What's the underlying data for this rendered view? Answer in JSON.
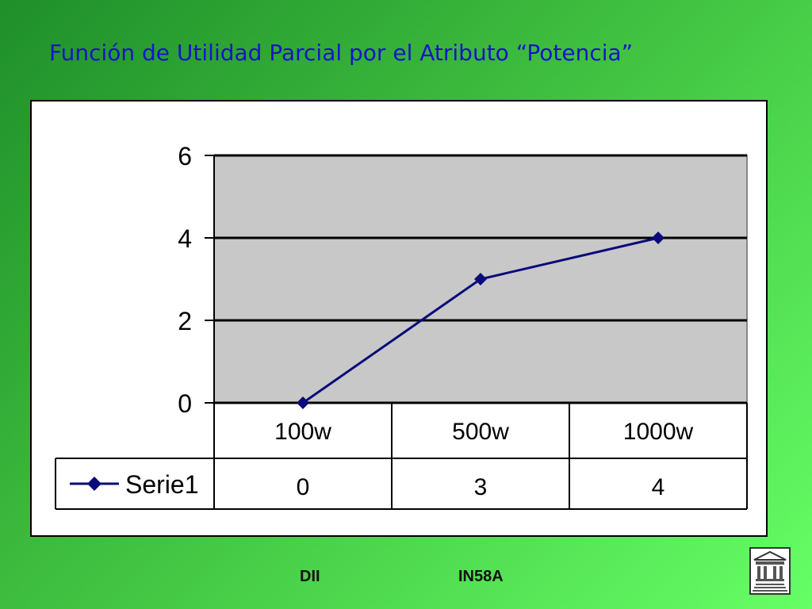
{
  "slide": {
    "title": "Función de Utilidad Parcial por el Atributo “Potencia”",
    "footer_left": "DII",
    "footer_right": "IN58A",
    "logo_icon": "building-icon"
  },
  "colors": {
    "title": "#1515c8",
    "series": "#0a0a7a",
    "plot_area": "#c8c8c8",
    "background_start": "#1f8f2a",
    "background_end": "#66ff66"
  },
  "chart_data": {
    "type": "line",
    "title": "",
    "xlabel": "",
    "ylabel": "",
    "categories": [
      "100w",
      "500w",
      "1000w"
    ],
    "series": [
      {
        "name": "Serie1",
        "values": [
          0,
          3,
          4
        ]
      }
    ],
    "yticks": [
      "0",
      "2",
      "4",
      "6"
    ],
    "ylim": [
      0,
      6
    ],
    "grid": true,
    "legend_placement": "bottom-left",
    "data_table": true
  }
}
